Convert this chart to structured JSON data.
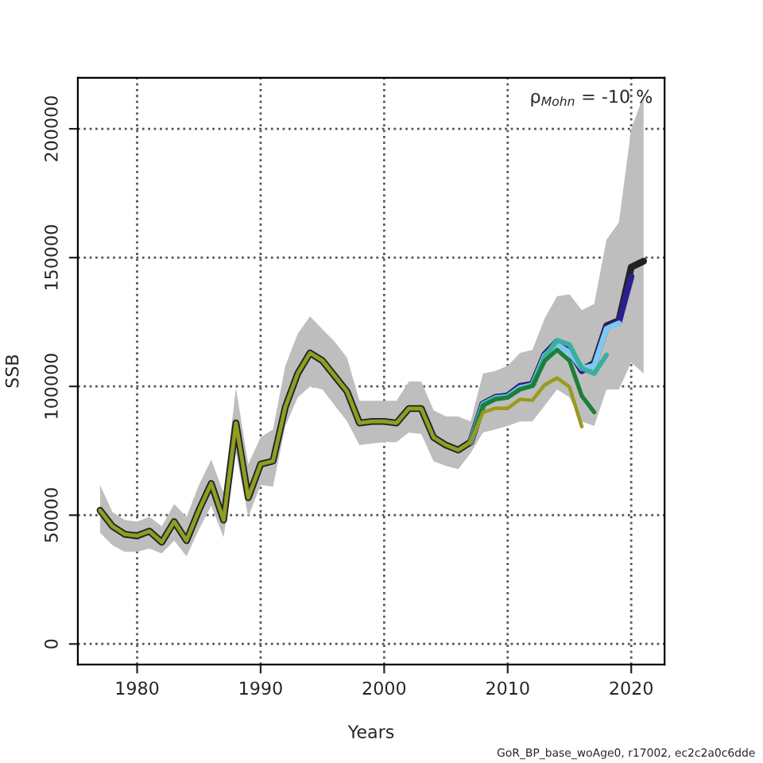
{
  "chart_data": {
    "type": "line",
    "xlabel": "Years",
    "ylabel": "SSB",
    "x": [
      1977,
      1978,
      1979,
      1980,
      1981,
      1982,
      1983,
      1984,
      1985,
      1986,
      1987,
      1988,
      1989,
      1990,
      1991,
      1992,
      1993,
      1994,
      1995,
      1996,
      1997,
      1998,
      1999,
      2000,
      2001,
      2002,
      2003,
      2004,
      2005,
      2006,
      2007,
      2008,
      2009,
      2010,
      2011,
      2012,
      2013,
      2014,
      2015,
      2016,
      2017,
      2018,
      2019,
      2020,
      2021
    ],
    "series": [
      {
        "color": "#222222",
        "values": [
          51900,
          45700,
          42600,
          42000,
          43800,
          39500,
          47500,
          40100,
          51900,
          62300,
          48100,
          85800,
          56800,
          69800,
          71000,
          92000,
          105000,
          113000,
          110000,
          104000,
          98000,
          85800,
          86400,
          86400,
          85800,
          91400,
          91400,
          80200,
          77200,
          75300,
          78400,
          93200,
          95700,
          96300,
          100000,
          100800,
          112300,
          117300,
          114200,
          106400,
          109000,
          123500,
          125500,
          146300,
          148600
        ],
        "lower": [
          43200,
          38300,
          35800,
          35800,
          37000,
          35200,
          40100,
          34000,
          44400,
          53700,
          41400,
          74100,
          49400,
          61700,
          61100,
          84600,
          95700,
          100000,
          98800,
          92600,
          86400,
          77200,
          77800,
          78400,
          78400,
          82100,
          81500,
          71000,
          69100,
          67900,
          74100,
          82100,
          83300,
          84600,
          86400,
          86400,
          92600,
          98800,
          95700,
          86400,
          84600,
          98800,
          98800,
          109300,
          105000
        ],
        "upper": [
          61700,
          51200,
          48100,
          47500,
          49400,
          45700,
          54300,
          49400,
          61700,
          71600,
          58600,
          99400,
          69800,
          80200,
          83300,
          108000,
          120400,
          127200,
          122200,
          117300,
          111100,
          94400,
          94400,
          94400,
          94400,
          101900,
          101900,
          90700,
          88300,
          88300,
          86400,
          105000,
          106000,
          108000,
          113000,
          114200,
          126500,
          135000,
          135800,
          129600,
          132000,
          157000,
          163600,
          200000,
          213000
        ]
      },
      {
        "color": "#2b1f8f",
        "values": [
          null,
          null,
          null,
          null,
          null,
          null,
          null,
          null,
          null,
          null,
          null,
          null,
          null,
          null,
          null,
          null,
          null,
          null,
          null,
          null,
          null,
          null,
          null,
          null,
          null,
          null,
          null,
          null,
          null,
          null,
          78400,
          93200,
          95700,
          96300,
          100000,
          100800,
          112300,
          117000,
          114000,
          106000,
          108500,
          123000,
          125000,
          142600,
          null
        ]
      },
      {
        "color": "#7ec8f0",
        "values": [
          null,
          null,
          null,
          null,
          null,
          null,
          null,
          null,
          null,
          null,
          null,
          null,
          null,
          null,
          null,
          null,
          null,
          null,
          null,
          null,
          null,
          null,
          null,
          null,
          null,
          null,
          null,
          null,
          null,
          null,
          78400,
          93000,
          95500,
          96000,
          99500,
          100500,
          112000,
          116200,
          113200,
          107000,
          108000,
          122400,
          124500,
          null,
          null
        ]
      },
      {
        "color": "#3aafa0",
        "values": [
          null,
          null,
          null,
          null,
          null,
          null,
          null,
          null,
          null,
          null,
          null,
          null,
          null,
          null,
          null,
          null,
          null,
          null,
          null,
          null,
          null,
          null,
          null,
          null,
          null,
          null,
          null,
          null,
          null,
          null,
          78400,
          92800,
          95300,
          95800,
          99000,
          100300,
          111500,
          117900,
          116200,
          107000,
          105000,
          112200,
          null,
          null,
          null
        ]
      },
      {
        "color": "#1b7f3a",
        "values": [
          51900,
          45700,
          42600,
          42000,
          43800,
          39500,
          47500,
          40100,
          51900,
          62300,
          48100,
          85800,
          56800,
          69800,
          71000,
          92000,
          105000,
          113000,
          110000,
          104000,
          98000,
          85800,
          86400,
          86400,
          85800,
          91400,
          91400,
          80200,
          77200,
          75300,
          78400,
          92600,
          95000,
          95700,
          98800,
          100200,
          109900,
          114200,
          110000,
          96300,
          90000,
          null,
          null,
          null,
          null
        ]
      },
      {
        "color": "#9a9a1f",
        "values": [
          51900,
          45700,
          42600,
          42000,
          43800,
          39500,
          47500,
          40100,
          51900,
          62300,
          48100,
          85800,
          56800,
          69800,
          71000,
          92000,
          105000,
          113000,
          110000,
          104000,
          98000,
          85800,
          86400,
          86400,
          85800,
          91400,
          91400,
          80200,
          77200,
          75300,
          78400,
          89900,
          91500,
          91500,
          95000,
          94600,
          100600,
          103300,
          99800,
          84400,
          null,
          null,
          null,
          null,
          null
        ]
      }
    ],
    "xlim": [
      1975.2,
      2022.7
    ],
    "ylim": [
      -8000,
      219800
    ],
    "xticks": [
      1980,
      1990,
      2000,
      2010,
      2020
    ],
    "yticks": [
      0,
      50000,
      100000,
      150000,
      200000
    ],
    "grid": true,
    "line_style": "solid",
    "annotations": [
      "ρ$_{Mohn}$ = -10 %",
      "GoR_BP_base_woAge0, r17002, ec2c2a0c6dde"
    ]
  }
}
